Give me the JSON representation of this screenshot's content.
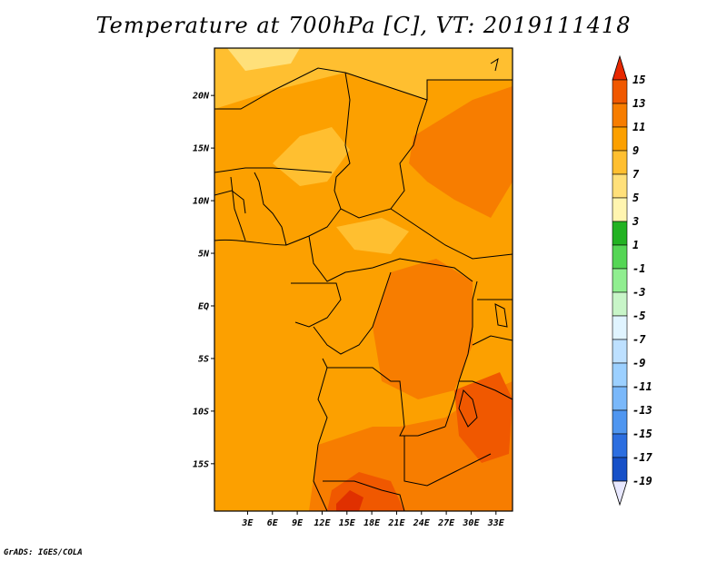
{
  "title": "Temperature at 700hPa [C], VT: 2019111418",
  "credit": "GrADS: IGES/COLA",
  "map": {
    "lon_range": [
      -1,
      35
    ],
    "lat_range": [
      -19.5,
      24.5
    ],
    "lat_ticks": [
      {
        "value": 20,
        "label": "20N"
      },
      {
        "value": 15,
        "label": "15N"
      },
      {
        "value": 10,
        "label": "10N"
      },
      {
        "value": 5,
        "label": "5N"
      },
      {
        "value": 0,
        "label": "EQ"
      },
      {
        "value": -5,
        "label": "5S"
      },
      {
        "value": -10,
        "label": "10S"
      },
      {
        "value": -15,
        "label": "15S"
      }
    ],
    "lon_ticks": [
      {
        "value": 3,
        "label": "3E"
      },
      {
        "value": 6,
        "label": "6E"
      },
      {
        "value": 9,
        "label": "9E"
      },
      {
        "value": 12,
        "label": "12E"
      },
      {
        "value": 15,
        "label": "15E"
      },
      {
        "value": 18,
        "label": "18E"
      },
      {
        "value": 21,
        "label": "21E"
      },
      {
        "value": 24,
        "label": "24E"
      },
      {
        "value": 27,
        "label": "27E"
      },
      {
        "value": 30,
        "label": "30E"
      },
      {
        "value": 33,
        "label": "33E"
      }
    ]
  },
  "colorbar": {
    "labels": [
      "15",
      "13",
      "11",
      "9",
      "7",
      "5",
      "3",
      "1",
      "-1",
      "-3",
      "-5",
      "-7",
      "-9",
      "-11",
      "-13",
      "-15",
      "-17",
      "-19"
    ],
    "colors": [
      "#e03000",
      "#f05800",
      "#f77d00",
      "#fca000",
      "#ffbf30",
      "#ffe07a",
      "#fff5b0",
      "#22b222",
      "#55d655",
      "#90ee90",
      "#c8f5c8",
      "#e0f4ff",
      "#bde0ff",
      "#9cd0ff",
      "#7ab8fa",
      "#4f96f0",
      "#2c6ee0",
      "#1650c8",
      "#0a34a8",
      "#000c78"
    ],
    "top_color": "#e82800",
    "bottom_color": "#e8e8ff"
  }
}
